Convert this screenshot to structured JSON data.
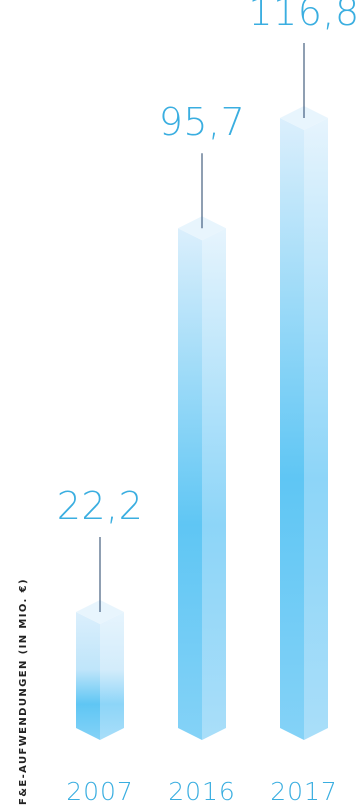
{
  "chart_data": {
    "type": "bar",
    "categories": [
      "2007",
      "2016",
      "2017"
    ],
    "values": [
      22.2,
      95.7,
      116.8
    ],
    "value_labels": [
      "22,2",
      "95,7",
      "116,8"
    ],
    "ylabel": "F&E-AUFWENDUNGEN (IN MIO. €)",
    "title": "",
    "xlabel": "",
    "ylim": [
      0,
      116.8
    ],
    "grid": false,
    "legend": "none",
    "colors": {
      "bar_light": "#dbeffc",
      "bar_mid": "#5fc6f4",
      "bar_top": "#e8f5fd",
      "label": "#3aaee0",
      "leader": "#1f3f66"
    }
  }
}
